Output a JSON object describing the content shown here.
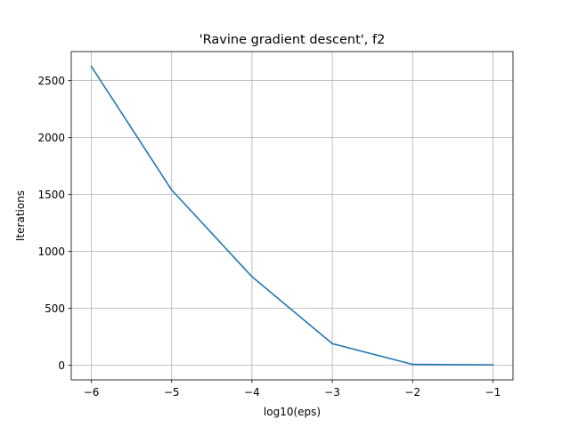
{
  "chart_data": {
    "type": "line",
    "title": "'Ravine gradient descent', f2",
    "xlabel": "log10(eps)",
    "ylabel": "Iterations",
    "x": [
      -6,
      -5,
      -4,
      -3,
      -2,
      -1
    ],
    "series": [
      {
        "values": [
          2625,
          1540,
          778,
          190,
          8,
          3
        ],
        "color": "#1f77b4"
      }
    ],
    "xlim": [
      -6.25,
      -0.75
    ],
    "ylim": [
      -128,
      2755
    ],
    "xticks": [
      -6,
      -5,
      -4,
      -3,
      -2,
      -1
    ],
    "xtick_labels": [
      "−6",
      "−5",
      "−4",
      "−3",
      "−2",
      "−1"
    ],
    "yticks": [
      0,
      500,
      1000,
      1500,
      2000,
      2500
    ],
    "ytick_labels": [
      "0",
      "500",
      "1000",
      "1500",
      "2000",
      "2500"
    ],
    "grid": true,
    "grid_color": "#b0b0b0",
    "legend": "none"
  }
}
